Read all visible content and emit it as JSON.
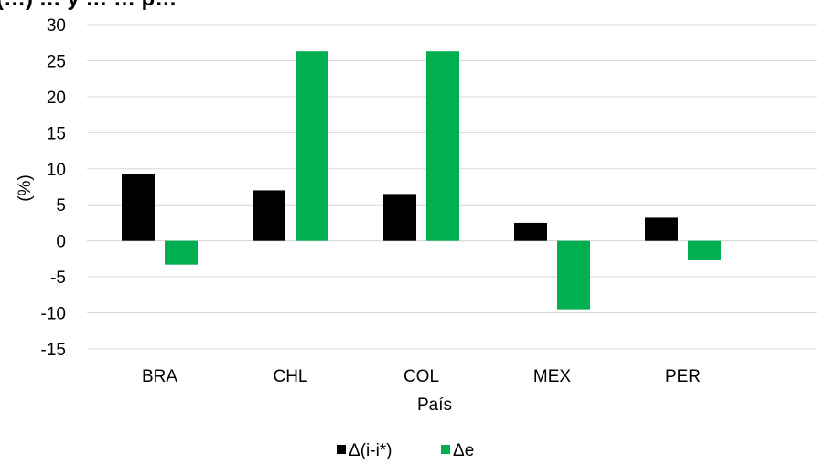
{
  "chart_data": {
    "type": "bar",
    "title": "(…) … y … … p…",
    "xlabel": "País",
    "ylabel": "(%)",
    "categories": [
      "BRA",
      "CHL",
      "COL",
      "MEX",
      "PER"
    ],
    "series": [
      {
        "name": "Δ(i-i*)",
        "color": "#000000",
        "values": [
          9.3,
          7.0,
          6.5,
          2.5,
          3.2
        ]
      },
      {
        "name": "Δe",
        "color": "#00b050",
        "values": [
          -3.3,
          26.3,
          26.3,
          -9.5,
          -2.7
        ]
      }
    ],
    "ylim": [
      -15,
      30
    ],
    "yticks": [
      30,
      25,
      20,
      15,
      10,
      5,
      0,
      -5,
      -10,
      -15
    ],
    "ytick_labels": [
      "30",
      "25",
      "20",
      "15",
      "10",
      "5",
      "0",
      "-5",
      "-10",
      "-15"
    ],
    "grid": true,
    "legend_position": "bottom"
  }
}
